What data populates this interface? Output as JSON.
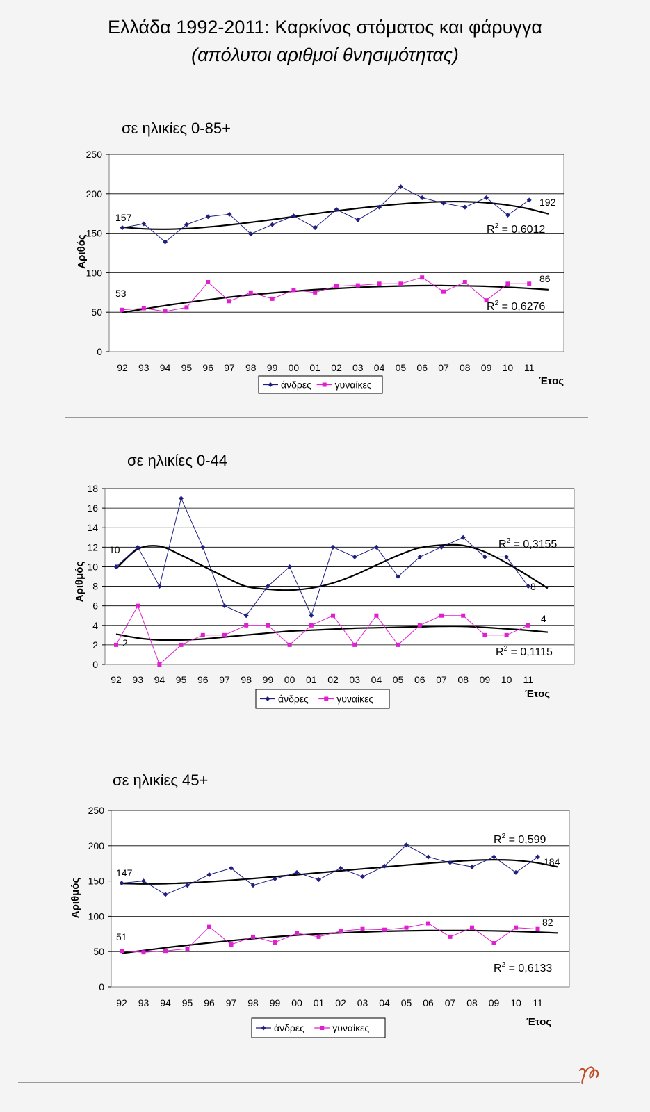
{
  "title": "Ελλάδα 1992-2011: Καρκίνος στόματος και φάρυγγα",
  "subtitle": "(απόλυτοι αριθμοί θνησιμότητας)",
  "colors": {
    "men": "#1f1f80",
    "women": "#e020d0",
    "trend": "#000000",
    "grid": "#000000",
    "plot_bg": "#ffffff",
    "page_bg": "#f4f4f4",
    "signature": "#c0502a"
  },
  "icons": {
    "signature": "signature-mark"
  },
  "chart_data": [
    {
      "type": "line",
      "panel_title": "σε ηλικίες 0-85+",
      "ylabel": "Αριθός",
      "xlabel": "Έτος",
      "categories": [
        "92",
        "93",
        "94",
        "95",
        "96",
        "97",
        "98",
        "99",
        "00",
        "01",
        "02",
        "03",
        "04",
        "05",
        "06",
        "07",
        "08",
        "09",
        "10",
        "11"
      ],
      "ylim": [
        0,
        250
      ],
      "yticks": [
        0,
        50,
        100,
        150,
        200,
        250
      ],
      "grid": true,
      "legend_position": "bottom-center",
      "series": [
        {
          "name": "άνδρες",
          "values": [
            157,
            162,
            139,
            161,
            171,
            174,
            149,
            161,
            172,
            157,
            180,
            167,
            183,
            209,
            195,
            188,
            183,
            195,
            173,
            192
          ]
        },
        {
          "name": "γυναίκες",
          "values": [
            53,
            55,
            51,
            56,
            88,
            64,
            75,
            67,
            78,
            75,
            83,
            84,
            86,
            86,
            94,
            76,
            88,
            65,
            86,
            86
          ]
        }
      ],
      "trendlines": [
        {
          "series": "άνδρες",
          "r2_label": "R",
          "r2_exp": "2",
          "r2_value": " = 0,6012",
          "values": [
            157.7,
            155.6,
            155.1,
            155.9,
            157.8,
            160.5,
            163.7,
            167.2,
            170.9,
            174.6,
            178.1,
            181.3,
            184.3,
            186.9,
            188.8,
            189.9,
            190.0,
            188.8,
            186.0,
            181.3,
            174.5
          ]
        },
        {
          "series": "γυναίκες",
          "r2_label": "R",
          "r2_exp": "2",
          "r2_value": " = 0,6276",
          "values": [
            49.6,
            54.0,
            58.3,
            62.2,
            65.8,
            69.0,
            71.8,
            74.3,
            76.5,
            78.4,
            80.0,
            81.3,
            82.4,
            83.1,
            83.6,
            83.7,
            83.4,
            82.8,
            81.7,
            80.3,
            78.5
          ]
        }
      ],
      "annotations": [
        {
          "text": "157",
          "series": "άνδρες",
          "at": "first"
        },
        {
          "text": "192",
          "series": "άνδρες",
          "at": "last"
        },
        {
          "text": "53",
          "series": "γυναίκες",
          "at": "first"
        },
        {
          "text": "86",
          "series": "γυναίκες",
          "at": "last"
        }
      ]
    },
    {
      "type": "line",
      "panel_title": "σε ηλικίες 0-44",
      "ylabel": "Αριθμός",
      "xlabel": "Έτος",
      "categories": [
        "92",
        "93",
        "94",
        "95",
        "96",
        "97",
        "98",
        "99",
        "00",
        "01",
        "02",
        "03",
        "04",
        "05",
        "06",
        "07",
        "08",
        "09",
        "10",
        "11"
      ],
      "ylim": [
        0,
        18
      ],
      "yticks": [
        0,
        2,
        4,
        6,
        8,
        10,
        12,
        14,
        16,
        18
      ],
      "grid": true,
      "legend_position": "bottom-center",
      "series": [
        {
          "name": "άνδρες",
          "values": [
            10,
            12,
            8,
            17,
            12,
            6,
            5,
            8,
            10,
            5,
            12,
            11,
            12,
            9,
            11,
            12,
            13,
            11,
            11,
            8
          ]
        },
        {
          "name": "γυναίκες",
          "values": [
            2,
            6,
            0,
            2,
            3,
            3,
            4,
            4,
            2,
            4,
            5,
            2,
            5,
            2,
            4,
            5,
            5,
            3,
            3,
            4
          ]
        }
      ],
      "trendlines": [
        {
          "series": "άνδρες",
          "r2_label": "R",
          "r2_exp": "2",
          "r2_value": " = 0,3155",
          "values": [
            9.8,
            11.8,
            12.1,
            11.2,
            10.1,
            9.0,
            8.0,
            7.7,
            7.6,
            7.8,
            8.3,
            9.1,
            10.1,
            11.1,
            11.9,
            12.2,
            12.2,
            11.6,
            10.5,
            9.2,
            7.8
          ]
        },
        {
          "series": "γυναίκες",
          "r2_label": "R",
          "r2_exp": "2",
          "r2_value": " = 0,1115",
          "values": [
            3.1,
            2.7,
            2.5,
            2.5,
            2.6,
            2.8,
            3.0,
            3.2,
            3.4,
            3.5,
            3.6,
            3.7,
            3.75,
            3.8,
            3.85,
            3.9,
            3.9,
            3.8,
            3.65,
            3.5,
            3.3
          ]
        }
      ],
      "annotations": [
        {
          "text": "10",
          "series": "άνδρες",
          "at": "first"
        },
        {
          "text": "8",
          "series": "άνδρες",
          "at": "last"
        },
        {
          "text": "2",
          "series": "γυναίκες",
          "at": "first"
        },
        {
          "text": "4",
          "series": "γυναίκες",
          "at": "last"
        }
      ]
    },
    {
      "type": "line",
      "panel_title": "σε ηλικίες 45+",
      "ylabel": "Αριθμός",
      "xlabel": "Έτος",
      "categories": [
        "92",
        "93",
        "94",
        "95",
        "96",
        "97",
        "98",
        "99",
        "00",
        "01",
        "02",
        "03",
        "04",
        "05",
        "06",
        "07",
        "08",
        "09",
        "10",
        "11"
      ],
      "ylim": [
        0,
        250
      ],
      "yticks": [
        0,
        50,
        100,
        150,
        200,
        250
      ],
      "grid": true,
      "legend_position": "bottom-center",
      "series": [
        {
          "name": "άνδρες",
          "values": [
            147,
            150,
            131,
            144,
            159,
            168,
            144,
            153,
            162,
            152,
            168,
            156,
            171,
            201,
            184,
            176,
            170,
            184,
            162,
            184
          ]
        },
        {
          "name": "γυναίκες",
          "values": [
            51,
            49,
            51,
            54,
            85,
            60,
            71,
            63,
            76,
            71,
            79,
            82,
            81,
            84,
            90,
            71,
            84,
            62,
            84,
            82
          ]
        }
      ],
      "trendlines": [
        {
          "series": "άνδρες",
          "r2_label": "R",
          "r2_exp": "2",
          "r2_value": " = 0,599",
          "values": [
            146.5,
            145.9,
            146.2,
            147.2,
            148.9,
            151.0,
            153.4,
            156.0,
            158.7,
            161.5,
            164.3,
            167.0,
            169.6,
            172.3,
            174.9,
            177.2,
            179.1,
            180.0,
            179.3,
            176.0,
            170.0
          ]
        },
        {
          "series": "γυναίκες",
          "r2_label": "R",
          "r2_exp": "2",
          "r2_value": " = 0,6133",
          "values": [
            47.7,
            51.5,
            55.4,
            59.0,
            62.4,
            65.5,
            68.3,
            70.9,
            73.1,
            75.0,
            76.5,
            77.7,
            78.7,
            79.4,
            79.8,
            79.9,
            79.8,
            79.4,
            78.7,
            77.7,
            76.4
          ]
        }
      ],
      "annotations": [
        {
          "text": "147",
          "series": "άνδρες",
          "at": "first"
        },
        {
          "text": "184",
          "series": "άνδρες",
          "at": "last"
        },
        {
          "text": "51",
          "series": "γυναίκες",
          "at": "first"
        },
        {
          "text": "82",
          "series": "γυναίκες",
          "at": "last"
        }
      ]
    }
  ]
}
